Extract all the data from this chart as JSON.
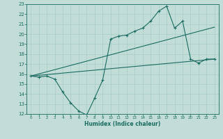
{
  "title": "",
  "xlabel": "Humidex (Indice chaleur)",
  "ylabel": "",
  "bg_color": "#c2ddd8",
  "grid_color": "#a8ccc8",
  "line_color": "#1a6b60",
  "xlim": [
    -0.5,
    23.5
  ],
  "ylim": [
    12,
    23
  ],
  "yticks": [
    12,
    13,
    14,
    15,
    16,
    17,
    18,
    19,
    20,
    21,
    22,
    23
  ],
  "xticks": [
    0,
    1,
    2,
    3,
    4,
    5,
    6,
    7,
    8,
    9,
    10,
    11,
    12,
    13,
    14,
    15,
    16,
    17,
    18,
    19,
    20,
    21,
    22,
    23
  ],
  "series1_x": [
    0,
    1,
    2,
    3,
    4,
    5,
    6,
    7,
    8,
    9,
    10,
    11,
    12,
    13,
    14,
    15,
    16,
    17,
    18,
    19,
    20,
    21,
    22,
    23
  ],
  "series1_y": [
    15.8,
    15.7,
    15.8,
    15.5,
    14.2,
    13.1,
    12.3,
    11.9,
    13.6,
    15.4,
    19.5,
    19.8,
    19.9,
    20.3,
    20.6,
    21.3,
    22.3,
    22.8,
    20.6,
    21.3,
    17.5,
    17.1,
    17.5,
    17.5
  ],
  "series2_x": [
    0,
    23
  ],
  "series2_y": [
    15.8,
    20.7
  ],
  "series3_x": [
    0,
    23
  ],
  "series3_y": [
    15.8,
    17.5
  ]
}
